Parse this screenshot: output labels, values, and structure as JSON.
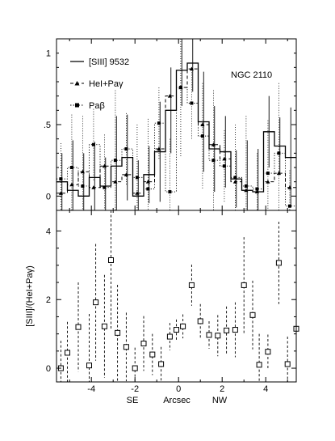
{
  "chart_data": [
    {
      "type": "line",
      "annotation": "NGC 2110",
      "x_tick_labels": [
        "-4",
        "-2",
        "0",
        "2",
        "4"
      ],
      "y_tick_labels": [
        "0",
        ".5",
        "1"
      ],
      "xlim": [
        -5.6,
        5.4
      ],
      "ylim": [
        -0.1,
        1.1
      ],
      "legend": {
        "placement": "top-left",
        "entries": [
          {
            "label": "[SIII] 9532",
            "style": "solid"
          },
          {
            "label": "HeI+Paγ",
            "style": "dashed-triangle"
          },
          {
            "label": "Paβ",
            "style": "dotted-square"
          }
        ]
      },
      "bin_edges": [
        -5.6,
        -5.1,
        -4.6,
        -4.1,
        -3.6,
        -3.1,
        -2.6,
        -2.1,
        -1.6,
        -1.1,
        -0.6,
        -0.1,
        0.4,
        0.9,
        1.4,
        1.9,
        2.4,
        2.9,
        3.4,
        3.9,
        4.4,
        4.9,
        5.4
      ],
      "series": [
        {
          "name": "[SIII] 9532",
          "values": [
            0.1,
            0.04,
            0.0,
            0.13,
            0.07,
            0.21,
            0.27,
            0.0,
            0.15,
            0.31,
            0.6,
            0.88,
            0.93,
            0.52,
            0.33,
            0.31,
            0.12,
            0.04,
            0.03,
            0.45,
            0.35,
            0.27
          ]
        },
        {
          "name": "HeI+Paγ",
          "x": [
            -5.4,
            -4.9,
            -4.4,
            -3.9,
            -3.4,
            -2.9,
            -2.4,
            -1.9,
            -1.4,
            -0.9,
            -0.4,
            0.1,
            0.6,
            1.1,
            1.6,
            2.1,
            2.6,
            3.1,
            3.6,
            4.1,
            4.6,
            5.1
          ],
          "values": [
            0.02,
            0.08,
            0.17,
            0.06,
            0.21,
            0.1,
            0.15,
            0.02,
            0.1,
            0.33,
            0.7,
            0.76,
            0.89,
            0.5,
            0.36,
            0.26,
            0.1,
            0.04,
            0.03,
            0.1,
            0.16,
            0.06
          ]
        },
        {
          "name": "Paβ",
          "x": [
            -5.4,
            -4.9,
            -4.4,
            -3.9,
            -3.4,
            -2.9,
            -2.4,
            -1.9,
            -1.4,
            -0.9,
            -0.4,
            0.1,
            0.6,
            1.1,
            1.6,
            2.1,
            2.6,
            3.1,
            3.6,
            4.1,
            4.6,
            5.1
          ],
          "values": [
            0.12,
            0.2,
            0.07,
            0.36,
            0.06,
            0.25,
            0.33,
            0.13,
            0.05,
            0.51,
            0.03,
            0.76,
            0.65,
            0.42,
            0.25,
            0.21,
            0.13,
            0.07,
            0.05,
            0.16,
            0.3,
            -0.07
          ]
        }
      ]
    },
    {
      "type": "scatter",
      "xlabel": "Arcsec",
      "xlabel_left": "SE",
      "xlabel_right": "NW",
      "ylabel": "[SIII]/(HeI+Paγ)",
      "x_tick_labels": [
        "-4",
        "-2",
        "0",
        "2",
        "4"
      ],
      "y_tick_labels": [
        "0",
        "2",
        "4"
      ],
      "xlim": [
        -5.6,
        5.4
      ],
      "ylim": [
        -0.4,
        4.6
      ],
      "series": [
        {
          "name": "[SIII]/(HeI+Paγ)",
          "x": [
            -5.4,
            -5.1,
            -4.6,
            -4.1,
            -3.8,
            -3.4,
            -3.1,
            -2.8,
            -2.4,
            -2.0,
            -1.6,
            -1.2,
            -0.8,
            -0.4,
            -0.1,
            0.2,
            0.6,
            1.0,
            1.4,
            1.8,
            2.2,
            2.6,
            3.0,
            3.4,
            3.7,
            4.1,
            4.6,
            5.0,
            5.4
          ],
          "y": [
            0.0,
            0.45,
            1.2,
            0.08,
            1.92,
            1.22,
            3.15,
            1.03,
            0.62,
            0.0,
            0.72,
            0.4,
            0.12,
            0.92,
            1.12,
            1.22,
            2.42,
            1.37,
            0.97,
            0.95,
            1.1,
            1.12,
            2.42,
            1.55,
            0.1,
            0.48,
            3.07,
            0.12,
            1.15
          ],
          "err": [
            0.8,
            0.9,
            1.3,
            1.5,
            1.7,
            1.5,
            2.0,
            1.4,
            1.0,
            0.6,
            0.8,
            0.6,
            0.5,
            0.4,
            0.3,
            0.35,
            0.6,
            0.5,
            0.4,
            0.6,
            0.7,
            0.8,
            1.4,
            1.0,
            0.9,
            0.5,
            1.2,
            0.8,
            1.0
          ]
        }
      ]
    }
  ]
}
